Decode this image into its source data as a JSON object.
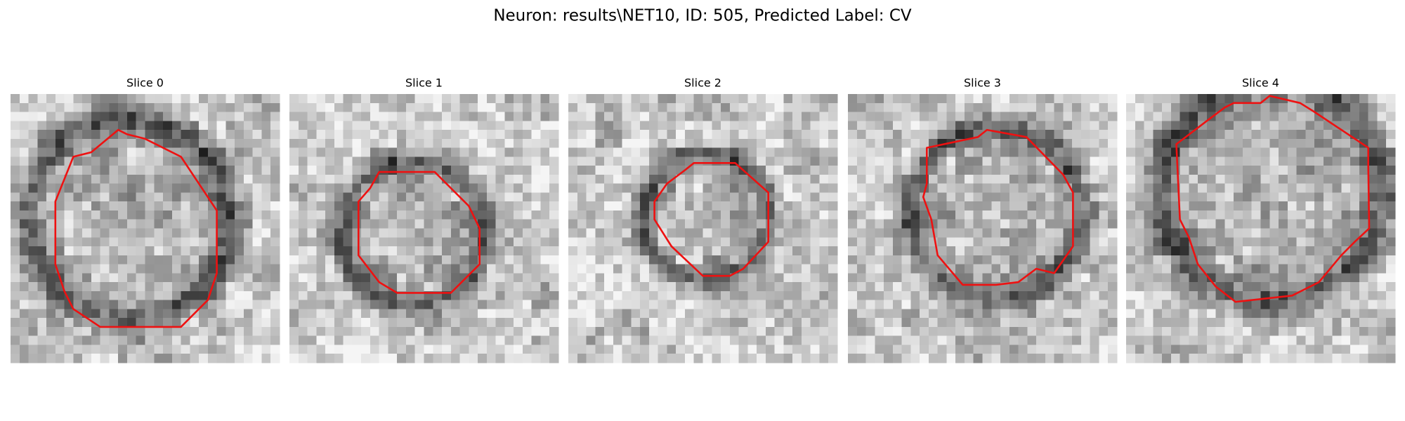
{
  "title": "Neuron: results\\NET10, ID: 505, Predicted Label: CV",
  "panels": [
    {
      "title": "Slice 0"
    },
    {
      "title": "Slice 1"
    },
    {
      "title": "Slice 2"
    },
    {
      "title": "Slice 3"
    },
    {
      "title": "Slice 4"
    }
  ]
}
